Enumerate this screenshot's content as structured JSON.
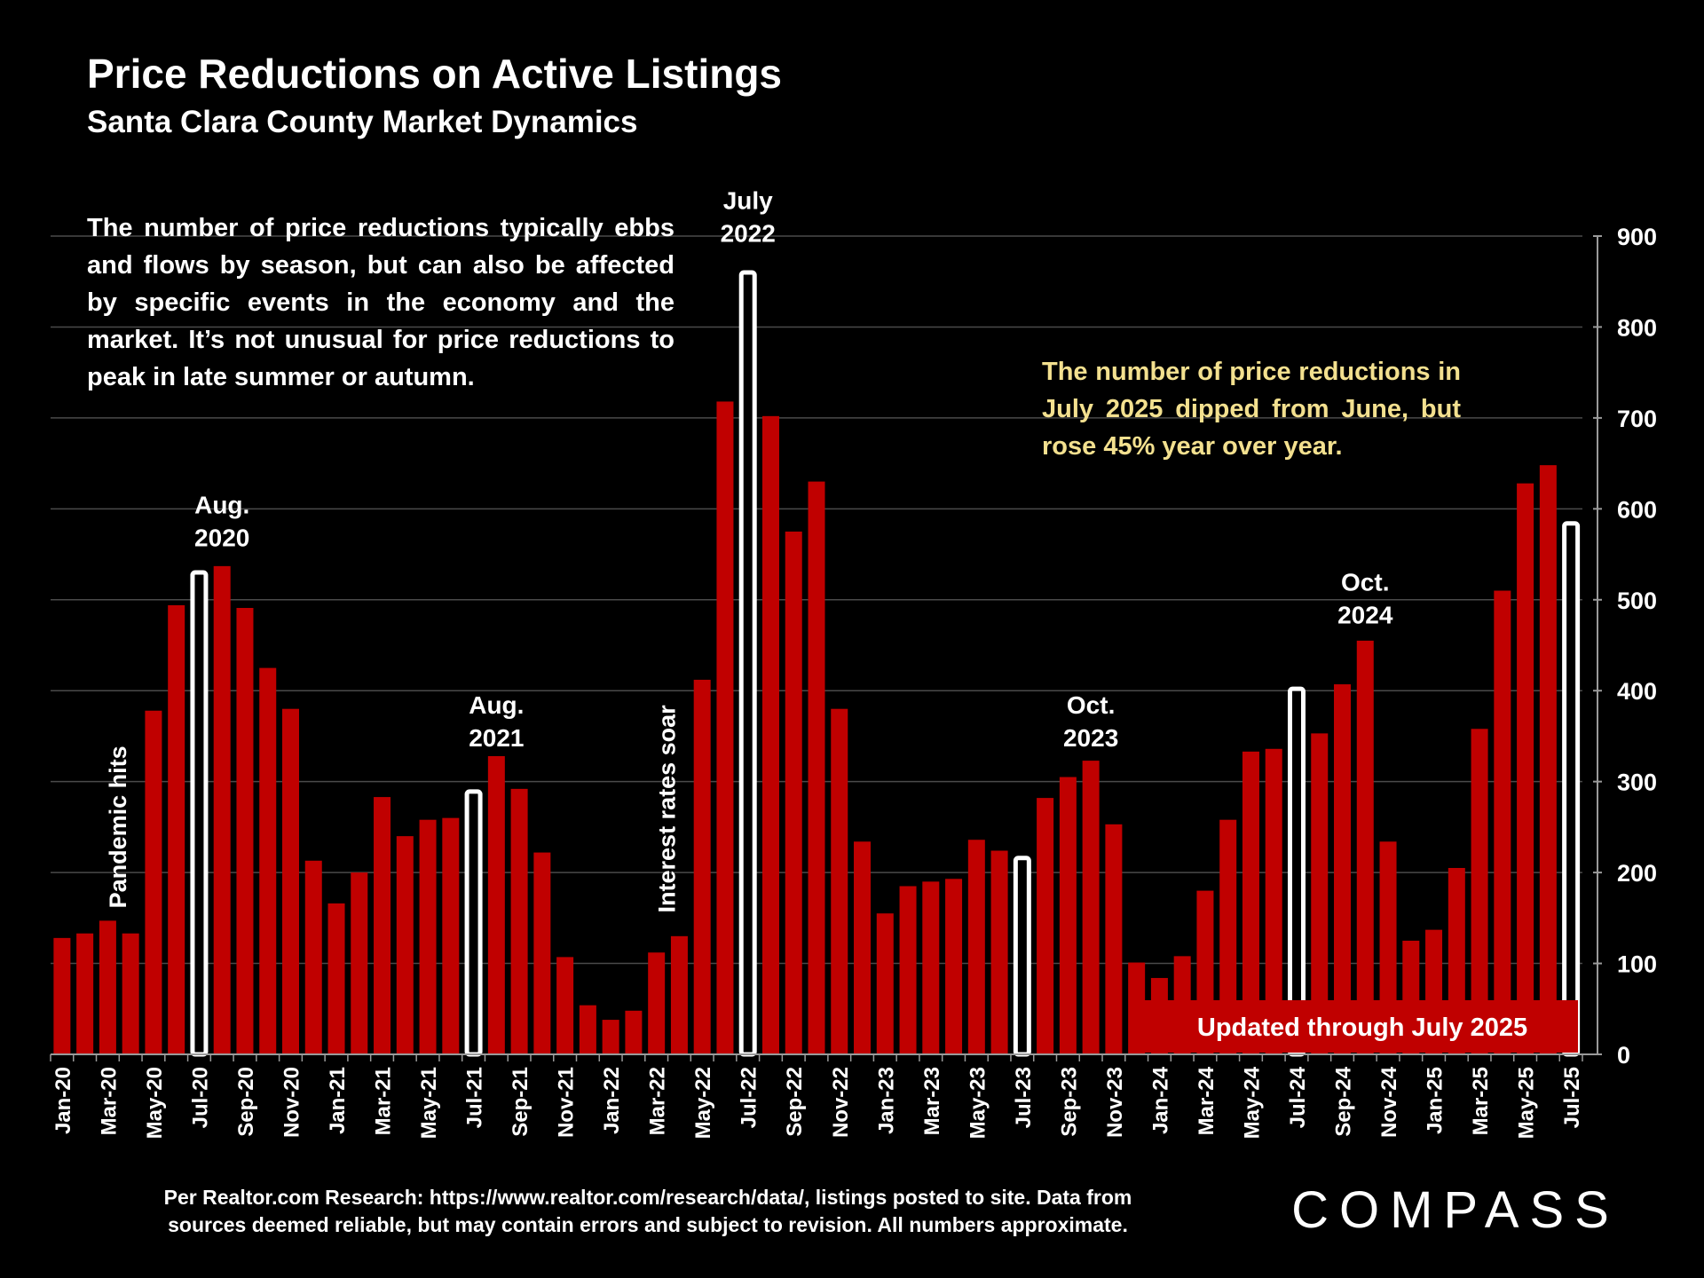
{
  "header": {
    "title": "Price Reductions on Active Listings",
    "subtitle": "Santa Clara County Market Dynamics"
  },
  "intro_text": "The number of price reductions typically ebbs and flows by season, but can also be affected by specific events in the economy and the market. It’s not unusual for price reductions to peak in late summer or autumn.",
  "note_text": "The number of price reductions in July 2025 dipped from June, but rose 45% year over year.",
  "updated_banner": "Updated through July 2025",
  "source_text": "Per Realtor.com Research:  https://www.realtor.com/research/data/, listings posted to site. Data from sources deemed reliable, but may contain errors and subject to revision. All numbers approximate.",
  "logo_text": "COMPASS",
  "colors": {
    "background": "#000000",
    "bar": "#c00000",
    "highlight_bar_fill": "#000000",
    "highlight_bar_stroke": "#ffffff",
    "note_text": "#f3e08f",
    "banner": "#c00000"
  },
  "chart_data": {
    "type": "bar",
    "ylim": [
      0,
      900
    ],
    "yticks": [
      0,
      100,
      200,
      300,
      400,
      500,
      600,
      700,
      800,
      900
    ],
    "y_axis_side": "right",
    "grid": true,
    "categories": [
      "Jan-20",
      "Feb-20",
      "Mar-20",
      "Apr-20",
      "May-20",
      "Jun-20",
      "Jul-20",
      "Aug-20",
      "Sep-20",
      "Oct-20",
      "Nov-20",
      "Dec-20",
      "Jan-21",
      "Feb-21",
      "Mar-21",
      "Apr-21",
      "May-21",
      "Jun-21",
      "Jul-21",
      "Aug-21",
      "Sep-21",
      "Oct-21",
      "Nov-21",
      "Dec-21",
      "Jan-22",
      "Feb-22",
      "Mar-22",
      "Apr-22",
      "May-22",
      "Jun-22",
      "Jul-22",
      "Aug-22",
      "Sep-22",
      "Oct-22",
      "Nov-22",
      "Dec-22",
      "Jan-23",
      "Feb-23",
      "Mar-23",
      "Apr-23",
      "May-23",
      "Jun-23",
      "Jul-23",
      "Aug-23",
      "Sep-23",
      "Oct-23",
      "Nov-23",
      "Dec-23",
      "Jan-24",
      "Feb-24",
      "Mar-24",
      "Apr-24",
      "May-24",
      "Jun-24",
      "Jul-24",
      "Aug-24",
      "Sep-24",
      "Oct-24",
      "Nov-24",
      "Dec-24",
      "Jan-25",
      "Feb-25",
      "Mar-25",
      "Apr-25",
      "May-25",
      "Jun-25",
      "Jul-25"
    ],
    "x_tick_labels": [
      "Jan-20",
      "Mar-20",
      "May-20",
      "Jul-20",
      "Sep-20",
      "Nov-20",
      "Jan-21",
      "Mar-21",
      "May-21",
      "Jul-21",
      "Sep-21",
      "Nov-21",
      "Jan-22",
      "Mar-22",
      "May-22",
      "Jul-22",
      "Sep-22",
      "Nov-22",
      "Jan-23",
      "Mar-23",
      "May-23",
      "Jul-23",
      "Sep-23",
      "Nov-23",
      "Jan-24",
      "Mar-24",
      "May-24",
      "Jul-24",
      "Sep-24",
      "Nov-24",
      "Jan-25",
      "Mar-25",
      "May-25",
      "Jul-25"
    ],
    "values": [
      128,
      133,
      147,
      133,
      378,
      494,
      530,
      537,
      491,
      425,
      380,
      213,
      166,
      200,
      283,
      240,
      258,
      260,
      289,
      328,
      292,
      222,
      107,
      54,
      38,
      48,
      112,
      130,
      412,
      718,
      860,
      702,
      575,
      630,
      380,
      234,
      155,
      185,
      190,
      193,
      236,
      224,
      216,
      282,
      305,
      323,
      253,
      101,
      84,
      108,
      180,
      258,
      333,
      336,
      402,
      353,
      407,
      455,
      234,
      125,
      137,
      205,
      358,
      510,
      628,
      648,
      584
    ],
    "highlighted": [
      "Jul-20",
      "Jul-21",
      "Jul-22",
      "Jul-23",
      "Jul-24",
      "Jul-25"
    ],
    "annotations": [
      {
        "text": "Aug.",
        "text2": "2020",
        "at": "Aug-20",
        "value": 595
      },
      {
        "text": "Aug.",
        "text2": "2021",
        "at": "Aug-21",
        "value": 375
      },
      {
        "text": "July",
        "text2": "2022",
        "at": "Jul-22",
        "value": 930
      },
      {
        "text": "Oct.",
        "text2": "2023",
        "at": "Oct-23",
        "value": 375
      },
      {
        "text": "Oct.",
        "text2": "2024",
        "at": "Oct-24",
        "value": 510
      }
    ],
    "events": [
      {
        "text": "Pandemic hits",
        "at": "Apr-20",
        "value": 250
      },
      {
        "text": "Interest rates soar",
        "at": "Apr-22",
        "value": 270
      }
    ]
  }
}
